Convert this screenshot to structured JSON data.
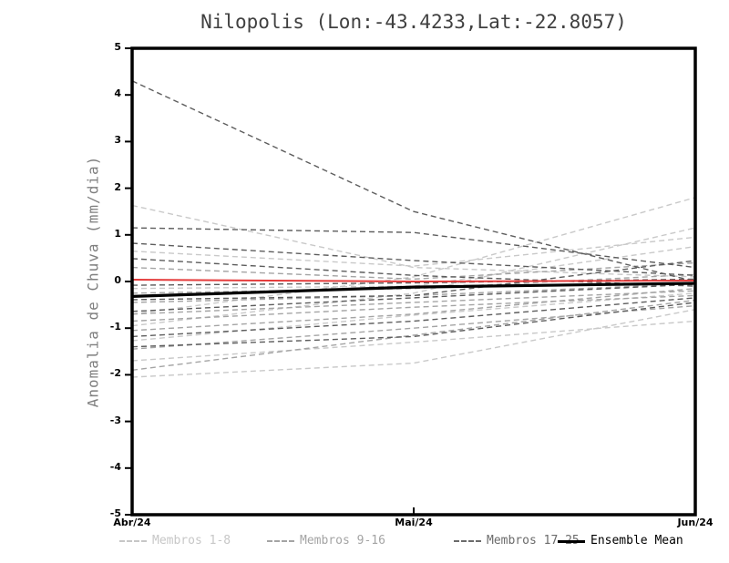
{
  "chart_data": {
    "type": "line",
    "title": "Nilopolis (Lon:-43.4233,Lat:-22.8057)",
    "ylabel": "Anomalia de Chuva (mm/dia)",
    "x_categories": [
      "Abr/24",
      "Mai/24",
      "Jun/24"
    ],
    "ylim": [
      -5,
      5
    ],
    "yticks": [
      5,
      4,
      3,
      2,
      1,
      0,
      -1,
      -2,
      -3,
      -4,
      -5
    ],
    "grid": false,
    "legend_position": "bottom",
    "line_style_members": "dashed",
    "groups": [
      {
        "name": "Membros 1-8",
        "color": "#c9c9c9",
        "series": [
          [
            1.63,
            0.3,
            0.1
          ],
          [
            -0.7,
            0.1,
            1.8
          ],
          [
            -0.95,
            -0.25,
            1.15
          ],
          [
            0.65,
            0.33,
            0.95
          ],
          [
            -1.27,
            -0.72,
            -0.25
          ],
          [
            -1.7,
            -1.3,
            -0.85
          ],
          [
            -2.05,
            -1.75,
            -0.6
          ],
          [
            -0.15,
            -0.1,
            0.75
          ]
        ]
      },
      {
        "name": "Membros 9-16",
        "color": "#a4a4a4",
        "series": [
          [
            -0.45,
            -0.3,
            -0.05
          ],
          [
            -0.7,
            -0.45,
            -0.2
          ],
          [
            -0.85,
            -0.55,
            -0.3
          ],
          [
            -1.05,
            -0.7,
            -0.15
          ],
          [
            -1.45,
            -1.0,
            -0.52
          ],
          [
            -1.9,
            -1.15,
            -0.4
          ],
          [
            0.3,
            0.05,
            0.4
          ],
          [
            -0.25,
            -0.15,
            0.15
          ]
        ]
      },
      {
        "name": "Membros 17-25",
        "color": "#5d5d5d",
        "series": [
          [
            4.3,
            1.5,
            0.0
          ],
          [
            1.15,
            1.05,
            0.3
          ],
          [
            0.82,
            0.45,
            0.13
          ],
          [
            0.49,
            0.13,
            -0.1
          ],
          [
            -0.08,
            -0.03,
            0.05
          ],
          [
            -0.39,
            -0.3,
            0.45
          ],
          [
            -0.64,
            -0.35,
            -0.06
          ],
          [
            -1.18,
            -0.85,
            -0.35
          ],
          [
            -1.4,
            -1.18,
            -0.45
          ]
        ]
      }
    ],
    "reference_line": {
      "name": "zero-reference",
      "color": "#e43b3b",
      "values": [
        0.04,
        0.0,
        0.02
      ]
    },
    "ensemble_mean": {
      "name": "Ensemble Mean",
      "color": "#000000",
      "values": [
        -0.32,
        -0.12,
        -0.04
      ]
    }
  },
  "legend": {
    "items": [
      {
        "label": "Membros 1-8",
        "color": "#c7c7c7",
        "style": "dashed"
      },
      {
        "label": "Membros 9-16",
        "color": "#a4a4a4",
        "style": "dashed"
      },
      {
        "label": "Membros 17-25",
        "color": "#6b6b6b",
        "style": "dashed"
      },
      {
        "label": "Ensemble Mean",
        "color": "#000000",
        "style": "solid"
      }
    ]
  }
}
